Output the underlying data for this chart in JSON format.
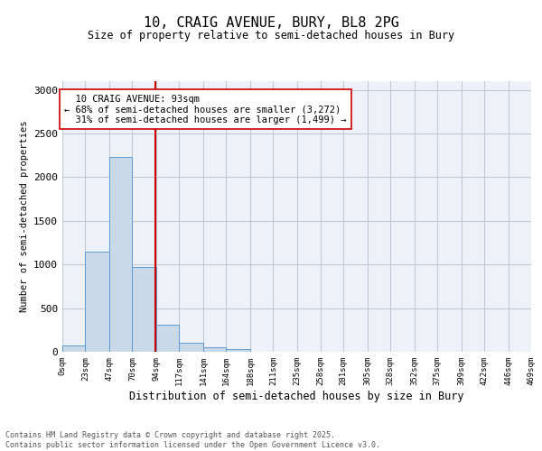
{
  "title_line1": "10, CRAIG AVENUE, BURY, BL8 2PG",
  "title_line2": "Size of property relative to semi-detached houses in Bury",
  "xlabel": "Distribution of semi-detached houses by size in Bury",
  "ylabel": "Number of semi-detached properties",
  "property_size": 93,
  "property_label": "10 CRAIG AVENUE: 93sqm",
  "pct_smaller": 68,
  "pct_larger": 31,
  "n_smaller": 3272,
  "n_larger": 1499,
  "bar_color": "#c9d9e8",
  "bar_edge_color": "#5b9bd5",
  "vline_color": "#cc0000",
  "annotation_box_edge": "#cc0000",
  "annotation_box_face": "white",
  "grid_color": "#c0c8d8",
  "background_color": "#eef2f8",
  "bin_edges": [
    0,
    23,
    47,
    70,
    94,
    117,
    141,
    164,
    188,
    211,
    235,
    258,
    281,
    305,
    328,
    352,
    375,
    399,
    422,
    446,
    469
  ],
  "bin_counts": [
    75,
    1150,
    2230,
    975,
    310,
    105,
    55,
    30,
    0,
    0,
    0,
    0,
    0,
    0,
    0,
    0,
    0,
    0,
    0,
    0
  ],
  "ylim": [
    0,
    3100
  ],
  "yticks": [
    0,
    500,
    1000,
    1500,
    2000,
    2500,
    3000
  ],
  "footer_line1": "Contains HM Land Registry data © Crown copyright and database right 2025.",
  "footer_line2": "Contains public sector information licensed under the Open Government Licence v3.0."
}
